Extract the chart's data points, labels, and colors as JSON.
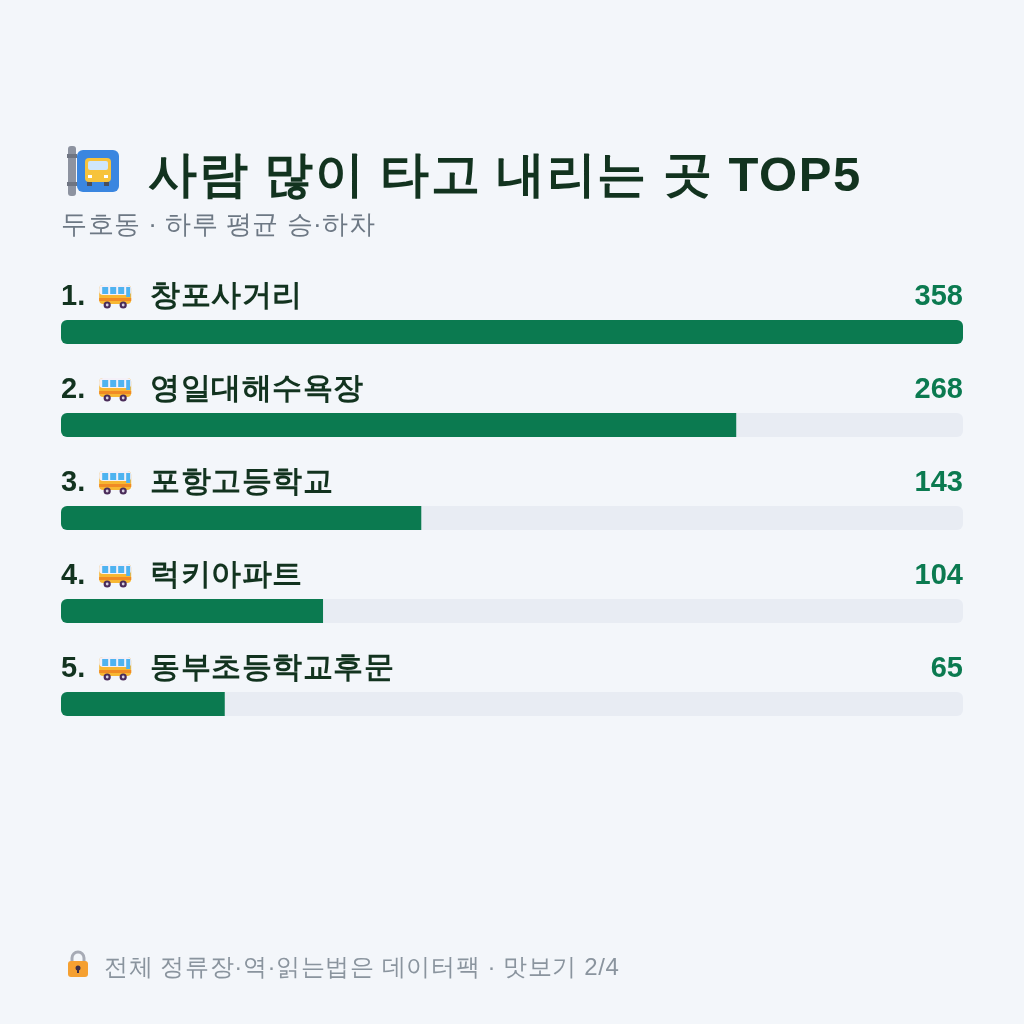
{
  "chart_data": {
    "type": "bar",
    "orientation": "horizontal",
    "title": "사람 많이 타고 내리는 곳 TOP5",
    "subtitle": "두호동 · 하루 평균 승·하차",
    "categories": [
      "1. 창포사거리",
      "2. 영일대해수욕장",
      "3. 포항고등학교",
      "4. 럭키아파트",
      "5. 동부초등학교후문"
    ],
    "values": [
      358,
      268,
      143,
      104,
      65
    ],
    "color": "#0b7a50",
    "data_labels": true,
    "annotations": [
      "전체 정류장·역·읽는법은 데이터팩 · 맛보기 2/4"
    ]
  }
}
